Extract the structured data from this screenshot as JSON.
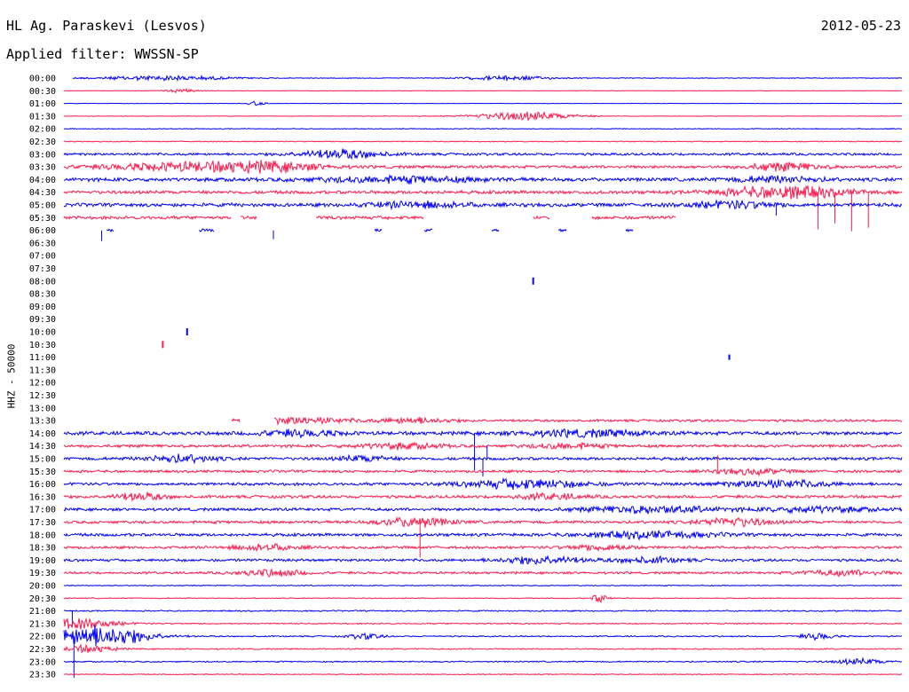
{
  "header": {
    "station": "HL Ag. Paraskevi (Lesvos)",
    "filter": "Applied filter: WWSSN-SP",
    "date": "2012-05-23"
  },
  "chart_data": {
    "type": "line",
    "ylabel": "HHZ - 50000",
    "colors": [
      "#0000ff",
      "#ff1a4d"
    ],
    "rows": [
      {
        "label": "00:00",
        "level": 0.45,
        "bursts": [
          [
            0.12,
            0.08,
            1.3
          ],
          [
            0.53,
            0.05,
            1.2
          ]
        ],
        "gaps": [
          [
            0.0,
            0.01
          ]
        ],
        "spikes": []
      },
      {
        "label": "00:30",
        "level": 0.3,
        "bursts": [
          [
            0.14,
            0.02,
            1.0
          ]
        ],
        "gaps": [],
        "spikes": []
      },
      {
        "label": "01:00",
        "level": 0.2,
        "bursts": [
          [
            0.23,
            0.01,
            1.2
          ]
        ],
        "gaps": [],
        "spikes": []
      },
      {
        "label": "01:30",
        "level": 0.3,
        "bursts": [
          [
            0.55,
            0.06,
            2.5
          ]
        ],
        "gaps": [],
        "spikes": []
      },
      {
        "label": "02:00",
        "level": 0.5,
        "bursts": [],
        "gaps": [],
        "spikes": []
      },
      {
        "label": "02:30",
        "level": 0.6,
        "bursts": [],
        "gaps": [],
        "spikes": []
      },
      {
        "label": "03:00",
        "level": 1.5,
        "bursts": [
          [
            0.33,
            0.05,
            2.5
          ]
        ],
        "gaps": [],
        "spikes": []
      },
      {
        "label": "03:30",
        "level": 1.8,
        "bursts": [
          [
            0.15,
            0.1,
            2.3
          ],
          [
            0.25,
            0.06,
            2.0
          ],
          [
            0.86,
            0.04,
            2.2
          ]
        ],
        "gaps": [],
        "spikes": []
      },
      {
        "label": "04:00",
        "level": 2.2,
        "bursts": [
          [
            0.4,
            0.1,
            1.5
          ],
          [
            0.85,
            0.05,
            1.5
          ]
        ],
        "gaps": [],
        "spikes": []
      },
      {
        "label": "04:30",
        "level": 2.0,
        "bursts": [
          [
            0.86,
            0.07,
            3.5
          ]
        ],
        "gaps": [],
        "spikes": [
          [
            0.9,
            42
          ],
          [
            0.92,
            35
          ],
          [
            0.94,
            44
          ],
          [
            0.96,
            40
          ]
        ]
      },
      {
        "label": "05:00",
        "level": 2.2,
        "bursts": [
          [
            0.42,
            0.06,
            1.5
          ],
          [
            0.8,
            0.05,
            1.8
          ]
        ],
        "gaps": [],
        "spikes": [
          [
            0.85,
            12
          ]
        ]
      },
      {
        "label": "05:30",
        "level": 2.0,
        "bursts": [],
        "gaps": [
          [
            0.2,
            0.21
          ],
          [
            0.23,
            0.3
          ],
          [
            0.43,
            0.56
          ],
          [
            0.58,
            0.63
          ],
          [
            0.73,
            1.0
          ]
        ],
        "spikes": []
      },
      {
        "label": "06:00",
        "level": 1.8,
        "bursts": [],
        "gaps": [
          [
            0.0,
            0.05
          ],
          [
            0.06,
            0.16
          ],
          [
            0.18,
            0.37
          ],
          [
            0.38,
            0.43
          ],
          [
            0.44,
            0.51
          ],
          [
            0.52,
            0.59
          ],
          [
            0.6,
            0.67
          ],
          [
            0.68,
            1.0
          ]
        ],
        "spikes": [
          [
            0.045,
            12
          ],
          [
            0.25,
            10
          ]
        ]
      },
      {
        "label": "06:30",
        "level": 0,
        "bursts": [],
        "gaps": [],
        "spikes": []
      },
      {
        "label": "07:00",
        "level": 0,
        "bursts": [],
        "gaps": [],
        "spikes": []
      },
      {
        "label": "07:30",
        "level": 0,
        "bursts": [],
        "gaps": [],
        "spikes": []
      },
      {
        "label": "08:00",
        "level": 0,
        "bursts": [],
        "gaps": [],
        "spikes": []
      },
      {
        "label": "08:30",
        "level": 0,
        "bursts": [],
        "gaps": [],
        "spikes": []
      },
      {
        "label": "09:00",
        "level": 0,
        "bursts": [],
        "gaps": [],
        "spikes": []
      },
      {
        "label": "09:30",
        "level": 0,
        "bursts": [],
        "gaps": [],
        "spikes": []
      },
      {
        "label": "10:00",
        "level": 0,
        "bursts": [],
        "gaps": [],
        "spikes": []
      },
      {
        "label": "10:30",
        "level": 0,
        "bursts": [],
        "gaps": [],
        "spikes": []
      },
      {
        "label": "11:00",
        "level": 0,
        "bursts": [],
        "gaps": [],
        "spikes": []
      },
      {
        "label": "11:30",
        "level": 0,
        "bursts": [],
        "gaps": [],
        "spikes": []
      },
      {
        "label": "12:00",
        "level": 0,
        "bursts": [],
        "gaps": [],
        "spikes": []
      },
      {
        "label": "12:30",
        "level": 0,
        "bursts": [],
        "gaps": [],
        "spikes": []
      },
      {
        "label": "13:00",
        "level": 0,
        "bursts": [],
        "gaps": [],
        "spikes": []
      },
      {
        "label": "13:30",
        "level": 1.5,
        "bursts": [
          [
            0.28,
            0.06,
            1.8
          ],
          [
            0.42,
            0.04,
            1.5
          ]
        ],
        "gaps": [
          [
            0.0,
            0.2
          ],
          [
            0.21,
            0.25
          ]
        ],
        "spikes": []
      },
      {
        "label": "14:00",
        "level": 2.2,
        "bursts": [
          [
            0.28,
            0.05,
            1.5
          ],
          [
            0.62,
            0.07,
            1.7
          ]
        ],
        "gaps": [],
        "spikes": [
          [
            0.49,
            42
          ]
        ]
      },
      {
        "label": "14:30",
        "level": 1.8,
        "bursts": [
          [
            0.4,
            0.05,
            1.4
          ],
          [
            0.6,
            0.04,
            1.4
          ]
        ],
        "gaps": [],
        "spikes": []
      },
      {
        "label": "15:00",
        "level": 1.8,
        "bursts": [
          [
            0.14,
            0.04,
            2.0
          ],
          [
            0.36,
            0.03,
            1.6
          ]
        ],
        "gaps": [],
        "spikes": [
          [
            0.5,
            20
          ],
          [
            0.505,
            -15
          ]
        ]
      },
      {
        "label": "15:30",
        "level": 1.6,
        "bursts": [
          [
            0.82,
            0.04,
            1.5
          ]
        ],
        "gaps": [],
        "spikes": [
          [
            0.78,
            -18
          ]
        ]
      },
      {
        "label": "16:00",
        "level": 1.8,
        "bursts": [
          [
            0.55,
            0.07,
            2.5
          ],
          [
            0.85,
            0.06,
            2.0
          ]
        ],
        "gaps": [],
        "spikes": []
      },
      {
        "label": "16:30",
        "level": 1.8,
        "bursts": [
          [
            0.09,
            0.03,
            2.0
          ],
          [
            0.58,
            0.04,
            1.5
          ]
        ],
        "gaps": [],
        "spikes": []
      },
      {
        "label": "17:00",
        "level": 1.8,
        "bursts": [
          [
            0.7,
            0.08,
            1.8
          ],
          [
            0.9,
            0.06,
            1.5
          ]
        ],
        "gaps": [],
        "spikes": []
      },
      {
        "label": "17:30",
        "level": 1.8,
        "bursts": [
          [
            0.42,
            0.04,
            2.5
          ],
          [
            0.8,
            0.04,
            2.2
          ]
        ],
        "gaps": [],
        "spikes": [
          [
            0.425,
            40
          ]
        ]
      },
      {
        "label": "18:00",
        "level": 1.8,
        "bursts": [
          [
            0.7,
            0.08,
            1.7
          ]
        ],
        "gaps": [],
        "spikes": []
      },
      {
        "label": "18:30",
        "level": 1.6,
        "bursts": [
          [
            0.24,
            0.04,
            1.5
          ],
          [
            0.64,
            0.04,
            1.5
          ]
        ],
        "gaps": [],
        "spikes": []
      },
      {
        "label": "19:00",
        "level": 1.6,
        "bursts": [
          [
            0.57,
            0.05,
            2.0
          ],
          [
            0.7,
            0.04,
            1.5
          ]
        ],
        "gaps": [],
        "spikes": []
      },
      {
        "label": "19:30",
        "level": 1.4,
        "bursts": [
          [
            0.25,
            0.04,
            1.8
          ],
          [
            0.93,
            0.05,
            1.4
          ]
        ],
        "gaps": [],
        "spikes": []
      },
      {
        "label": "20:00",
        "level": 0.6,
        "bursts": [],
        "gaps": [],
        "spikes": []
      },
      {
        "label": "20:30",
        "level": 0.6,
        "bursts": [
          [
            0.64,
            0.01,
            2.5
          ]
        ],
        "gaps": [],
        "spikes": []
      },
      {
        "label": "21:00",
        "level": 0.8,
        "bursts": [],
        "gaps": [],
        "spikes": [
          [
            0.01,
            18
          ]
        ]
      },
      {
        "label": "21:30",
        "level": 0.8,
        "bursts": [
          [
            0.01,
            0.05,
            3.0
          ]
        ],
        "gaps": [],
        "spikes": []
      },
      {
        "label": "22:00",
        "level": 0.8,
        "bursts": [
          [
            0.04,
            0.06,
            6.0
          ],
          [
            0.36,
            0.02,
            1.5
          ],
          [
            0.9,
            0.02,
            1.8
          ]
        ],
        "gaps": [],
        "spikes": [
          [
            0.012,
            28
          ]
        ]
      },
      {
        "label": "22:30",
        "level": 0.8,
        "bursts": [
          [
            0.03,
            0.03,
            2.0
          ]
        ],
        "gaps": [],
        "spikes": []
      },
      {
        "label": "23:00",
        "level": 0.8,
        "bursts": [
          [
            0.95,
            0.03,
            1.5
          ]
        ],
        "gaps": [],
        "spikes": [
          [
            0.012,
            18
          ]
        ]
      },
      {
        "label": "23:30",
        "level": 0.6,
        "bursts": [],
        "gaps": [],
        "spikes": []
      }
    ],
    "isolated_marks": [
      {
        "row": "08:00",
        "t": 0.56,
        "amp": 4
      },
      {
        "row": "10:00",
        "t": 0.147,
        "amp": 4
      },
      {
        "row": "10:30",
        "t": 0.118,
        "amp": 4
      },
      {
        "row": "11:00",
        "t": 0.794,
        "amp": 3
      }
    ]
  }
}
